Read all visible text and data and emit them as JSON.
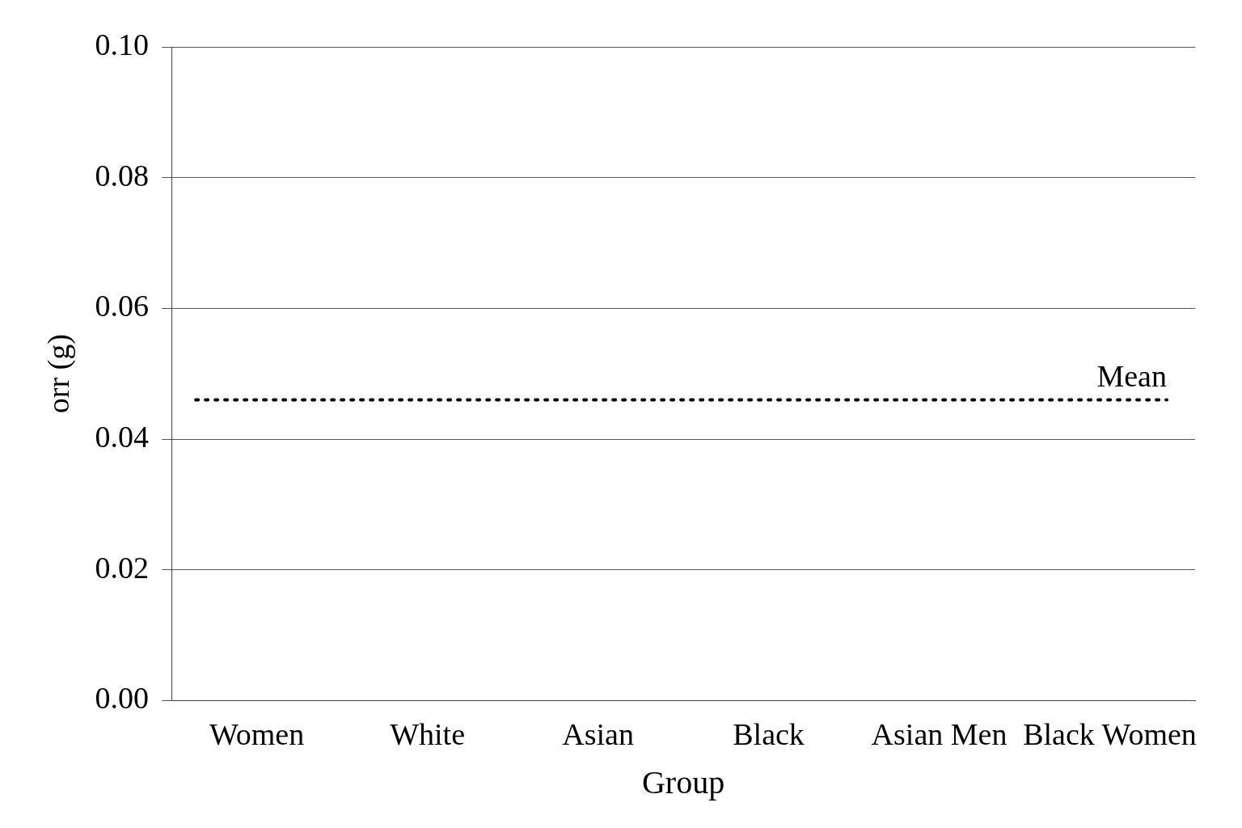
{
  "chart_data": {
    "type": "bar",
    "xlabel": "Group",
    "ylabel": "orr (g)",
    "categories": [
      "Women",
      "White",
      "Asian",
      "Black",
      "Asian Men",
      "Black Women"
    ],
    "values": [
      null,
      null,
      null,
      null,
      null,
      null
    ],
    "ylim": [
      0,
      0.1
    ],
    "yticks": [
      {
        "value": 0,
        "label": "0.00"
      },
      {
        "value": 0.02,
        "label": "0.02"
      },
      {
        "value": 0.04,
        "label": "0.04"
      },
      {
        "value": 0.06,
        "label": "0.06"
      },
      {
        "value": 0.08,
        "label": "0.08"
      },
      {
        "value": 0.1,
        "label": "0.10"
      }
    ],
    "grid": "y",
    "legend": false,
    "ref_lines": [
      {
        "axis": "y",
        "value": 0.046,
        "label": "Mean",
        "color": "#000000",
        "line_style": "dotted"
      }
    ]
  }
}
